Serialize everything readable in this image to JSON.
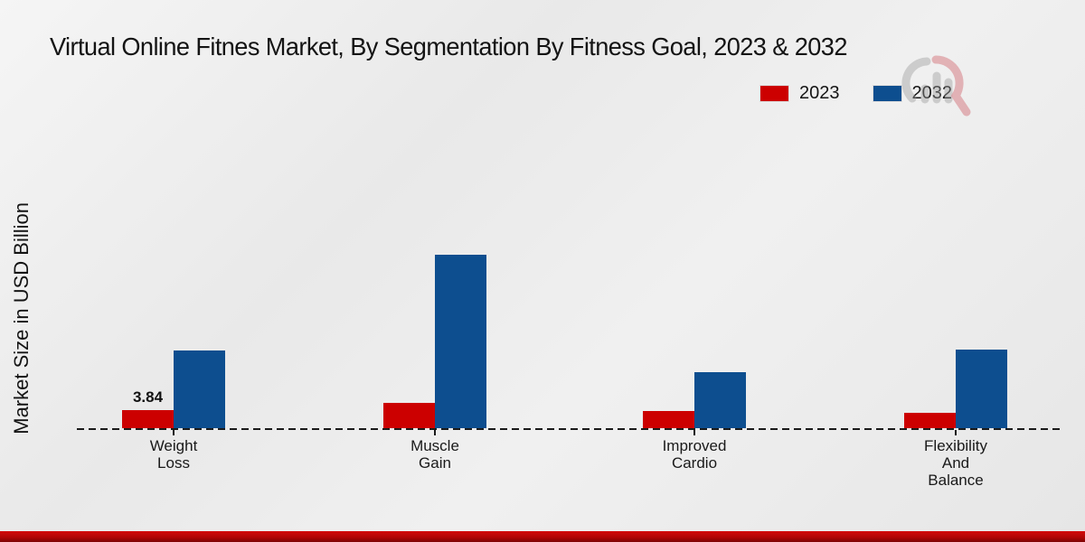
{
  "title": "Virtual Online Fitnes Market, By Segmentation By Fitness Goal, 2023 & 2032",
  "ylabel": "Market Size in USD Billion",
  "legend": {
    "items": [
      {
        "label": "2023",
        "color": "#cc0000"
      },
      {
        "label": "2032",
        "color": "#0d4e8f"
      }
    ]
  },
  "colors": {
    "series_2023": "#cc0000",
    "series_2032": "#0d4e8f",
    "text": "#141414",
    "footer_red": "#b30505",
    "background": "#ececec"
  },
  "watermark": {
    "name": "market-research-future-logo"
  },
  "chart_data": {
    "type": "bar",
    "title": "Virtual Online Fitnes Market, By Segmentation By Fitness Goal, 2023 & 2032",
    "xlabel": "",
    "ylabel": "Market Size in USD Billion",
    "categories": [
      "Weight Loss",
      "Muscle Gain",
      "Improved Cardio",
      "Flexibility And Balance"
    ],
    "series": [
      {
        "name": "2023",
        "color": "#cc0000",
        "values": [
          3.84,
          5.4,
          3.6,
          3.3
        ]
      },
      {
        "name": "2032",
        "color": "#0d4e8f",
        "values": [
          16.5,
          36.8,
          11.9,
          16.8
        ]
      }
    ],
    "annotations": [
      {
        "series": "2023",
        "category": "Weight Loss",
        "text": "3.84"
      }
    ],
    "ylim": [
      0,
      40
    ],
    "grid": false,
    "y_axis_ticks_visible": false,
    "baseline_style": "dashed",
    "legend_position": "top-right"
  }
}
